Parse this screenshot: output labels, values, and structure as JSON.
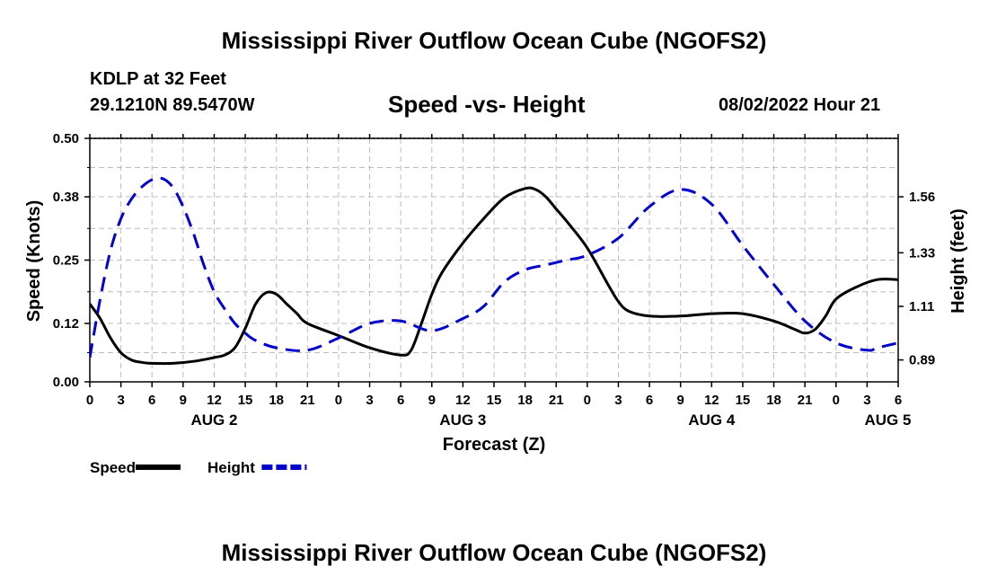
{
  "title": "Mississippi River Outflow Ocean Cube (NGOFS2)",
  "footer_title": "Mississippi River Outflow Ocean Cube (NGOFS2)",
  "station": "KDLP at 32 Feet",
  "coordinates": "29.1210N  89.5470W",
  "subtitle": "Speed -vs- Height",
  "datetime": "08/02/2022 Hour 21",
  "chart_data": {
    "type": "line",
    "xlabel": "Forecast (Z)",
    "ylabel": "Speed (Knots)",
    "y2label": "Height (feet)",
    "x_range_hours": [
      0,
      78
    ],
    "x_tick_step_hours": 3,
    "x_tick_labels": [
      "0",
      "3",
      "6",
      "9",
      "12",
      "15",
      "18",
      "21",
      "0",
      "3",
      "6",
      "9",
      "12",
      "15",
      "18",
      "21",
      "0",
      "3",
      "6",
      "9",
      "12",
      "15",
      "18",
      "21",
      "0",
      "3",
      "6"
    ],
    "day_labels": [
      {
        "label": "AUG 2",
        "hour": 12
      },
      {
        "label": "AUG 3",
        "hour": 36
      },
      {
        "label": "AUG 4",
        "hour": 60
      },
      {
        "label": "AUG 5",
        "hour": 77
      }
    ],
    "ylim": [
      0,
      0.5
    ],
    "y_ticks": [
      "0.00",
      "0.12",
      "0.25",
      "0.38",
      "0.50"
    ],
    "y2lim": [
      0.8,
      1.8
    ],
    "y2_ticks": [
      "0.89",
      "1.11",
      "1.33",
      "1.56"
    ],
    "legend": [
      {
        "name": "Speed",
        "color": "#000000",
        "style": "solid"
      },
      {
        "name": "Height",
        "color": "#0000cc",
        "style": "dashed"
      }
    ],
    "series": [
      {
        "name": "Speed",
        "axis": "left",
        "color": "#000000",
        "dash": "solid",
        "x": [
          0,
          1,
          2,
          3,
          4,
          5,
          6,
          8,
          10,
          12,
          13,
          14,
          15,
          16,
          17,
          18,
          19,
          20,
          21,
          24,
          27,
          30,
          31,
          32,
          33,
          34,
          36,
          38,
          40,
          42,
          43,
          44,
          45,
          46,
          48,
          50,
          51,
          52,
          54,
          57,
          60,
          63,
          66,
          68,
          69,
          70,
          71,
          72,
          74,
          76,
          78
        ],
        "values": [
          0.16,
          0.13,
          0.09,
          0.06,
          0.045,
          0.04,
          0.038,
          0.038,
          0.042,
          0.05,
          0.055,
          0.07,
          0.11,
          0.16,
          0.183,
          0.18,
          0.16,
          0.14,
          0.12,
          0.095,
          0.07,
          0.055,
          0.065,
          0.12,
          0.18,
          0.225,
          0.285,
          0.335,
          0.378,
          0.397,
          0.395,
          0.38,
          0.355,
          0.33,
          0.275,
          0.2,
          0.165,
          0.145,
          0.135,
          0.135,
          0.14,
          0.14,
          0.125,
          0.108,
          0.1,
          0.108,
          0.135,
          0.17,
          0.195,
          0.21,
          0.21
        ]
      },
      {
        "name": "Height",
        "axis": "right",
        "color": "#0000cc",
        "dash": "dashed",
        "x": [
          0,
          1,
          2,
          3,
          4,
          5,
          6,
          7,
          8,
          9,
          10,
          11,
          12,
          13,
          14,
          15,
          16,
          18,
          21,
          24,
          27,
          30,
          33,
          36,
          38,
          40,
          42,
          44,
          46,
          48,
          51,
          54,
          57,
          60,
          63,
          66,
          69,
          72,
          75,
          76,
          78
        ],
        "values": [
          0.9,
          1.14,
          1.34,
          1.47,
          1.55,
          1.6,
          1.63,
          1.635,
          1.6,
          1.52,
          1.41,
          1.28,
          1.17,
          1.1,
          1.04,
          1.0,
          0.97,
          0.94,
          0.93,
          0.98,
          1.04,
          1.05,
          1.01,
          1.06,
          1.11,
          1.21,
          1.26,
          1.28,
          1.3,
          1.32,
          1.39,
          1.52,
          1.59,
          1.53,
          1.36,
          1.2,
          1.05,
          0.96,
          0.93,
          0.94,
          0.96
        ]
      }
    ]
  }
}
